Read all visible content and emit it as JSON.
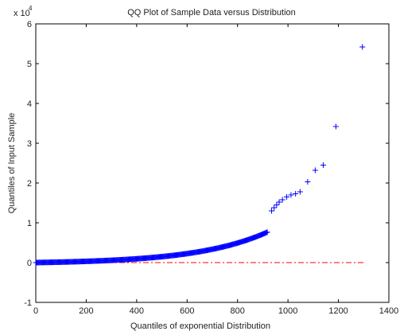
{
  "chart_data": {
    "type": "scatter",
    "title": "QQ Plot of Sample Data versus Distribution",
    "xlabel": "Quantiles of exponential Distribution",
    "ylabel": "Quantiles of Input Sample",
    "y_scale_label": "x 10",
    "y_scale_exponent": "4",
    "xlim": [
      0,
      1400
    ],
    "ylim": [
      -1,
      6
    ],
    "y_units": "x 10^4",
    "x_ticks": [
      "0",
      "200",
      "400",
      "600",
      "800",
      "1000",
      "1200",
      "1400"
    ],
    "y_ticks": [
      "-1",
      "0",
      "1",
      "2",
      "3",
      "4",
      "5",
      "6"
    ],
    "x_tick_values": [
      0,
      200,
      400,
      600,
      800,
      1000,
      1200,
      1400
    ],
    "y_tick_values": [
      -1,
      0,
      1,
      2,
      3,
      4,
      5,
      6
    ],
    "grid": false,
    "marker": "+",
    "colors": {
      "points": "#0000ff",
      "reference_line": "#ff0000",
      "axes": "#000000"
    },
    "reference_line": {
      "style": "dash-dot",
      "x": [
        0,
        1300
      ],
      "y": [
        0,
        0
      ]
    },
    "outliers": [
      {
        "x": 935,
        "y": 1.3
      },
      {
        "x": 945,
        "y": 1.38
      },
      {
        "x": 955,
        "y": 1.45
      },
      {
        "x": 965,
        "y": 1.52
      },
      {
        "x": 978,
        "y": 1.58
      },
      {
        "x": 995,
        "y": 1.65
      },
      {
        "x": 1012,
        "y": 1.7
      },
      {
        "x": 1030,
        "y": 1.73
      },
      {
        "x": 1048,
        "y": 1.78
      },
      {
        "x": 1078,
        "y": 2.03
      },
      {
        "x": 1108,
        "y": 2.32
      },
      {
        "x": 1140,
        "y": 2.45
      },
      {
        "x": 1190,
        "y": 3.42
      },
      {
        "x": 1295,
        "y": 5.42
      }
    ]
  }
}
